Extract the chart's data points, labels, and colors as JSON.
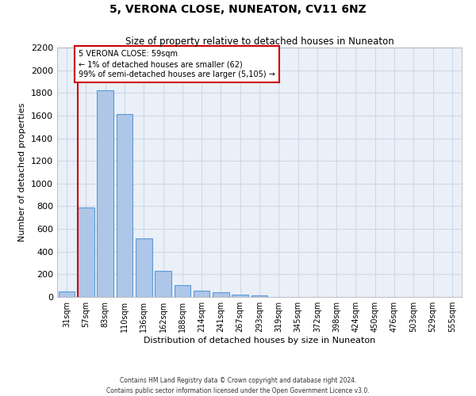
{
  "title": "5, VERONA CLOSE, NUNEATON, CV11 6NZ",
  "subtitle": "Size of property relative to detached houses in Nuneaton",
  "xlabel": "Distribution of detached houses by size in Nuneaton",
  "ylabel": "Number of detached properties",
  "footer_line1": "Contains HM Land Registry data © Crown copyright and database right 2024.",
  "footer_line2": "Contains public sector information licensed under the Open Government Licence v3.0.",
  "categories": [
    "31sqm",
    "57sqm",
    "83sqm",
    "110sqm",
    "136sqm",
    "162sqm",
    "188sqm",
    "214sqm",
    "241sqm",
    "267sqm",
    "293sqm",
    "319sqm",
    "345sqm",
    "372sqm",
    "398sqm",
    "424sqm",
    "450sqm",
    "476sqm",
    "503sqm",
    "529sqm",
    "555sqm"
  ],
  "values": [
    50,
    790,
    1820,
    1610,
    520,
    230,
    105,
    55,
    40,
    20,
    12,
    0,
    0,
    0,
    0,
    0,
    0,
    0,
    0,
    0,
    0
  ],
  "bar_color": "#aec6e8",
  "bar_edge_color": "#5b9bd5",
  "grid_color": "#d0d8e8",
  "background_color": "#eaf0f8",
  "property_line_color": "#cc0000",
  "annotation_text": "5 VERONA CLOSE: 59sqm\n← 1% of detached houses are smaller (62)\n99% of semi-detached houses are larger (5,105) →",
  "annotation_box_color": "#cc0000",
  "ylim": [
    0,
    2200
  ],
  "yticks": [
    0,
    200,
    400,
    600,
    800,
    1000,
    1200,
    1400,
    1600,
    1800,
    2000,
    2200
  ]
}
